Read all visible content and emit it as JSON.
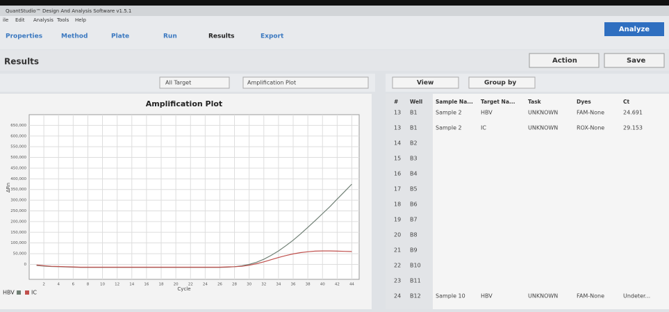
{
  "window": {
    "title": "QuantStudio™ Design And Analysis Software v1.5.1"
  },
  "menu": [
    "ile",
    "Edit",
    "Analysis",
    "Tools",
    "Help"
  ],
  "tabs": [
    "Properties",
    "Method",
    "Plate",
    "Run",
    "Results",
    "Export"
  ],
  "analyze_button": "Analyze",
  "results": {
    "title": "Results",
    "action": "Action",
    "save": "Save"
  },
  "toolbar": {
    "target": "All Target",
    "plot": "Amplification Plot"
  },
  "table_toolbar": {
    "view": "View",
    "group": "Group by"
  },
  "table": {
    "columns": [
      "#",
      "Well",
      "Sample Na...",
      "Target Na...",
      "Task",
      "Dyes",
      "Ct"
    ],
    "rows": [
      [
        "13",
        "B1",
        "Sample 2",
        "HBV",
        "UNKNOWN",
        "FAM-None",
        "24.691"
      ],
      [
        "13",
        "B1",
        "Sample 2",
        "IC",
        "UNKNOWN",
        "ROX-None",
        "29.153"
      ],
      [
        "14",
        "B2"
      ],
      [
        "15",
        "B3"
      ],
      [
        "16",
        "B4"
      ],
      [
        "17",
        "B5"
      ],
      [
        "18",
        "B6"
      ],
      [
        "19",
        "B7"
      ],
      [
        "20",
        "B8"
      ],
      [
        "21",
        "B9"
      ],
      [
        "22",
        "B10"
      ],
      [
        "23",
        "B11"
      ],
      [
        "24",
        "B12",
        "Sample 10",
        "HBV",
        "UNKNOWN",
        "FAM-None",
        "Undeter..."
      ]
    ]
  },
  "chart_data": {
    "type": "line",
    "title": "Amplification Plot",
    "y_label": "ΔRn",
    "x_label": "Cycle",
    "x": [
      1,
      2,
      3,
      4,
      5,
      6,
      7,
      8,
      9,
      10,
      11,
      12,
      13,
      14,
      15,
      16,
      17,
      18,
      19,
      20,
      21,
      22,
      23,
      24,
      25,
      26,
      27,
      28,
      29,
      30,
      31,
      32,
      33,
      34,
      35,
      36,
      37,
      38,
      39,
      40,
      41,
      42,
      43,
      44
    ],
    "series": [
      {
        "name": "HBV",
        "color": "#6f7f74",
        "values": [
          -5000,
          -8000,
          -10000,
          -11000,
          -12000,
          -13000,
          -14000,
          -14000,
          -14000,
          -14000,
          -14000,
          -14000,
          -14000,
          -14000,
          -14000,
          -14000,
          -14000,
          -14000,
          -14000,
          -14000,
          -14000,
          -14000,
          -14000,
          -14000,
          -14000,
          -14000,
          -13000,
          -11000,
          -7000,
          0,
          10000,
          24000,
          42000,
          63000,
          87000,
          113000,
          142000,
          173000,
          205000,
          237000,
          270000,
          305000,
          340000,
          375000
        ]
      },
      {
        "name": "IC",
        "color": "#c0504d",
        "values": [
          -3000,
          -6000,
          -9000,
          -10000,
          -11000,
          -12000,
          -13000,
          -13000,
          -13000,
          -13000,
          -13000,
          -13000,
          -13000,
          -13000,
          -13000,
          -13000,
          -13000,
          -13000,
          -13000,
          -13000,
          -13000,
          -13000,
          -13000,
          -13000,
          -13000,
          -13000,
          -12000,
          -11000,
          -9000,
          -4000,
          3000,
          12000,
          22000,
          32000,
          41000,
          49000,
          55000,
          59000,
          62000,
          63000,
          63000,
          62000,
          61000,
          60000
        ]
      }
    ],
    "xlim": [
      0,
      45
    ],
    "ylim": [
      -70000,
      700000
    ],
    "xticks": [
      2,
      4,
      6,
      8,
      10,
      12,
      14,
      16,
      18,
      20,
      22,
      24,
      26,
      28,
      30,
      32,
      34,
      36,
      38,
      40,
      42,
      44
    ],
    "yticks": [
      0,
      {
        "value": 50000,
        "label": "50,000"
      },
      {
        "value": 100000,
        "label": "100,000"
      },
      {
        "value": 150000,
        "label": "150,000"
      },
      {
        "value": 200000,
        "label": "200,000"
      },
      {
        "value": 250000,
        "label": "250,000"
      },
      {
        "value": 300000,
        "label": "300,000"
      },
      {
        "value": 350000,
        "label": "350,000"
      },
      {
        "value": 400000,
        "label": "400,000"
      },
      {
        "value": 450000,
        "label": "450,000"
      },
      {
        "value": 500000,
        "label": "500,000"
      },
      {
        "value": 550000,
        "label": "550,000"
      },
      {
        "value": 600000,
        "label": "600,000"
      },
      {
        "value": 650000,
        "label": "650,000"
      }
    ],
    "grid": true
  }
}
